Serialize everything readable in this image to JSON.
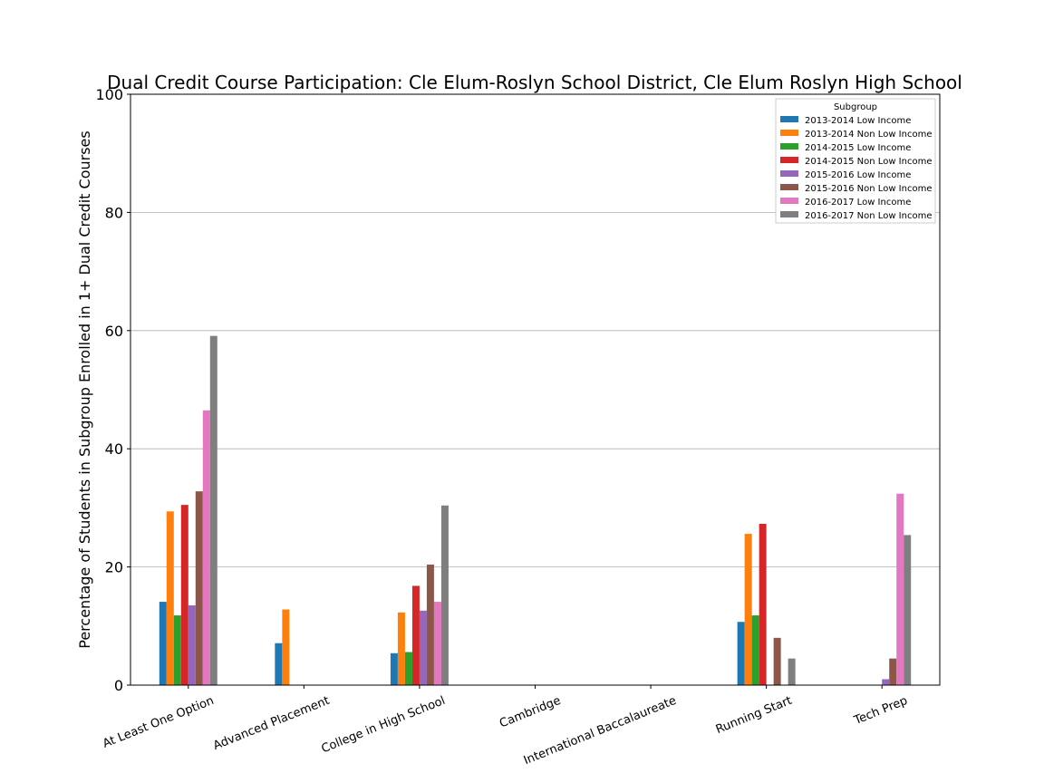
{
  "chart_data": {
    "type": "bar",
    "title": "Dual Credit Course Participation: Cle Elum-Roslyn School District, Cle Elum Roslyn High School",
    "xlabel": "",
    "ylabel": "Percentage of Students in Subgroup Enrolled in 1+ Dual Credit Courses",
    "ylim": [
      0,
      100
    ],
    "yticks": [
      0,
      20,
      40,
      60,
      80,
      100
    ],
    "grid": "horizontal",
    "legend_title": "Subgroup",
    "legend_position": "top-right",
    "categories": [
      "At Least One Option",
      "Advanced Placement",
      "College in High School",
      "Cambridge",
      "International Baccalaureate",
      "Running Start",
      "Tech Prep"
    ],
    "series": [
      {
        "name": "2013-2014 Low Income",
        "color": "#1f77b4",
        "values": [
          14.1,
          7.1,
          5.4,
          0,
          0,
          10.7,
          0
        ]
      },
      {
        "name": "2013-2014 Non Low Income",
        "color": "#ff7f0e",
        "values": [
          29.4,
          12.8,
          12.3,
          0,
          0,
          25.6,
          0
        ]
      },
      {
        "name": "2014-2015 Low Income",
        "color": "#2ca02c",
        "values": [
          11.8,
          0,
          5.6,
          0,
          0,
          11.8,
          0
        ]
      },
      {
        "name": "2014-2015 Non Low Income",
        "color": "#d62728",
        "values": [
          30.5,
          0,
          16.8,
          0,
          0,
          27.3,
          0
        ]
      },
      {
        "name": "2015-2016 Low Income",
        "color": "#9467bd",
        "values": [
          13.5,
          0,
          12.6,
          0,
          0,
          0,
          1.0
        ]
      },
      {
        "name": "2015-2016 Non Low Income",
        "color": "#8c564b",
        "values": [
          32.8,
          0,
          20.4,
          0,
          0,
          8.0,
          4.5
        ]
      },
      {
        "name": "2016-2017 Low Income",
        "color": "#e377c2",
        "values": [
          46.5,
          0,
          14.1,
          0,
          0,
          0,
          32.4
        ]
      },
      {
        "name": "2016-2017 Non Low Income",
        "color": "#7f7f7f",
        "values": [
          59.1,
          0,
          30.4,
          0,
          0,
          4.5,
          25.4
        ]
      }
    ]
  }
}
